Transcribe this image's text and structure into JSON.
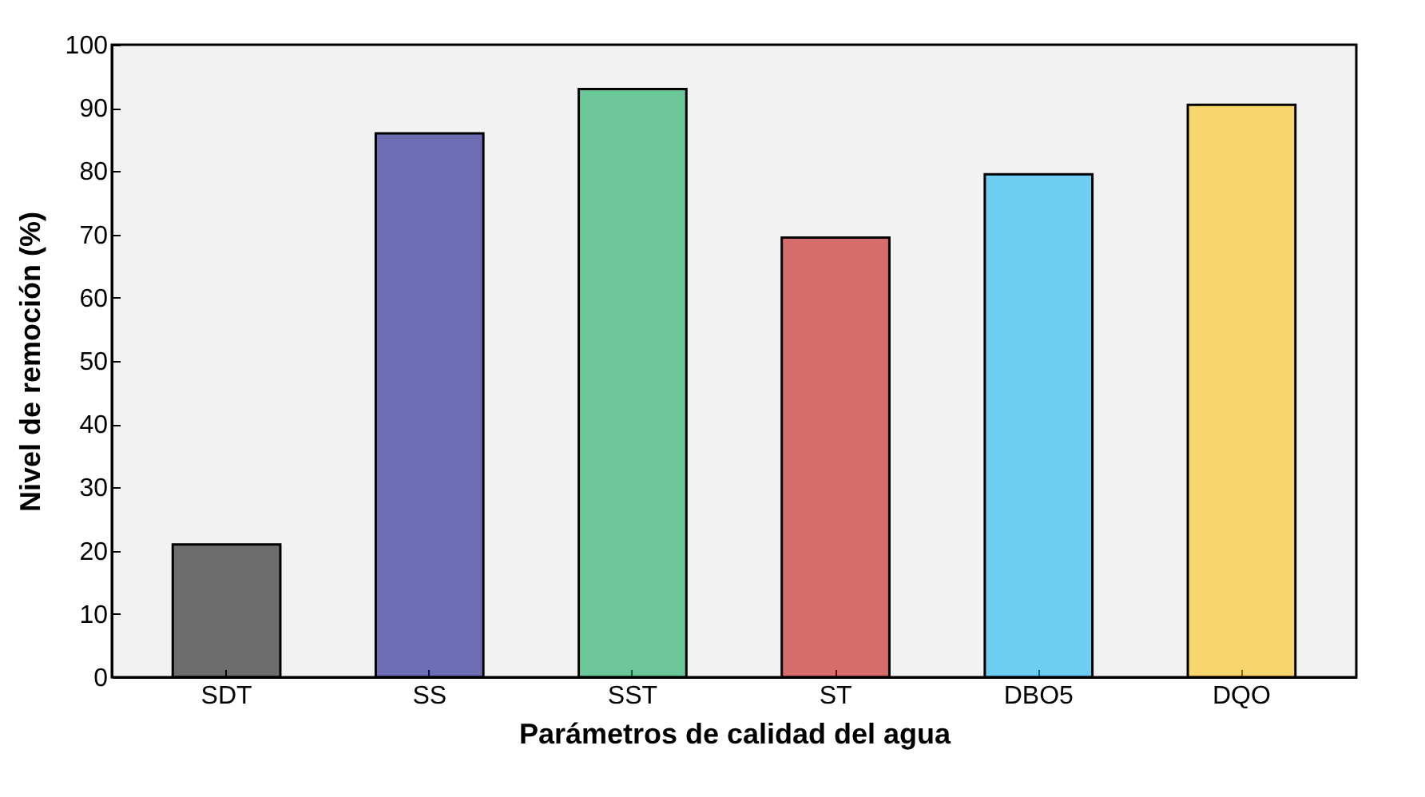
{
  "chart_data": {
    "type": "bar",
    "xlabel": "Parámetros de calidad del agua",
    "ylabel": "Nivel de remoción (%)",
    "categories": [
      "SDT",
      "SS",
      "SST",
      "ST",
      "DBO5",
      "DQO"
    ],
    "values": [
      21,
      86,
      93,
      69.5,
      79.5,
      90.5
    ],
    "colors": [
      "#000000",
      "#000080",
      "#00a550",
      "#c00000",
      "#00b0f0",
      "#ffc000"
    ],
    "ylim": [
      0,
      100
    ],
    "yticks": [
      0,
      10,
      20,
      30,
      40,
      50,
      60,
      70,
      80,
      90,
      100
    ],
    "grid": false,
    "legend": false
  }
}
